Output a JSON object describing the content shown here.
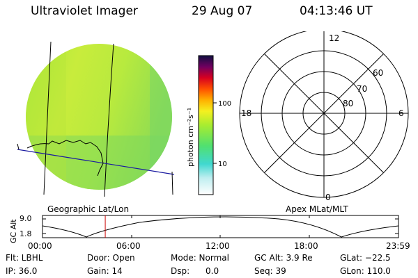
{
  "header": {
    "instrument": "Ultraviolet Imager",
    "date": "29 Aug 07",
    "time": "04:13:46 UT"
  },
  "colorbar": {
    "label": "photon cm⁻²s⁻¹",
    "ticks": [
      "100",
      "10"
    ]
  },
  "polar_plot": {
    "mlt_labels": {
      "top": "12",
      "left": "18",
      "right": "6",
      "bottom": "0"
    },
    "lat_labels": [
      "60",
      "70",
      "80"
    ]
  },
  "captions": {
    "left": "Geographic Lat/Lon",
    "right": "Apex MLat/MLT"
  },
  "altitude_plot": {
    "ylabel": "GC Alt",
    "yticks": [
      "9.0",
      "1.8"
    ],
    "xticks": [
      "00:00",
      "06:00",
      "12:00",
      "18:00",
      "23:59"
    ],
    "current_time_marker_hours": 4.23,
    "marker_color": "#cc0000"
  },
  "status": {
    "flt": "Flt: LBHL",
    "ip": "IP: 36.0",
    "door": "Door: Open",
    "gain": "Gain: 14",
    "mode": "Mode: Normal",
    "dsp": "Dsp:      0.0",
    "gcalt": "GC Alt: 3.9 Re",
    "seq": "Seq: 39",
    "glat": "GLat: −22.5",
    "glon": "GLon: 110.0"
  }
}
